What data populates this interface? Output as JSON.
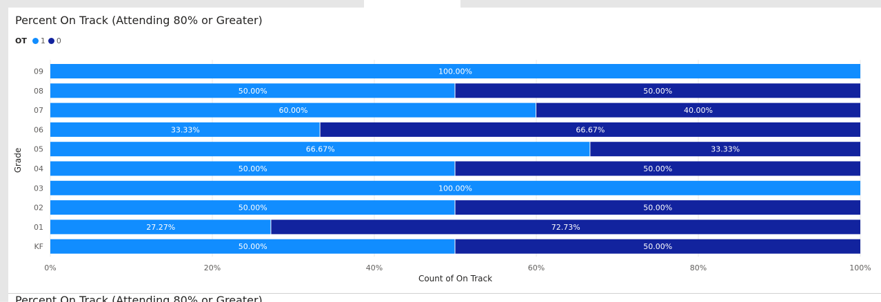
{
  "visual": {
    "title": "Percent On Track (Attending 80% or Greater)",
    "legend_title": "OT",
    "legend_items": [
      {
        "label": "1",
        "color": "#118dff"
      },
      {
        "label": "0",
        "color": "#12239e"
      }
    ]
  },
  "next_visual": {
    "title": "Percent On Track (Attending 80% or Greater)"
  },
  "chart_data": {
    "type": "bar",
    "orientation": "horizontal",
    "stacked": "100%",
    "title": "Percent On Track (Attending 80% or Greater)",
    "xlabel": "Count of On Track",
    "ylabel": "Grade",
    "categories": [
      "09",
      "08",
      "07",
      "06",
      "05",
      "04",
      "03",
      "02",
      "01",
      "KF"
    ],
    "series": [
      {
        "name": "1",
        "color": "#118dff",
        "values": [
          100.0,
          50.0,
          60.0,
          33.33,
          66.67,
          50.0,
          100.0,
          50.0,
          27.27,
          50.0
        ],
        "labels": [
          "100.00%",
          "50.00%",
          "60.00%",
          "33.33%",
          "66.67%",
          "50.00%",
          "100.00%",
          "50.00%",
          "27.27%",
          "50.00%"
        ]
      },
      {
        "name": "0",
        "color": "#12239e",
        "values": [
          0,
          50.0,
          40.0,
          66.67,
          33.33,
          50.0,
          0,
          50.0,
          72.73,
          50.0
        ],
        "labels": [
          "",
          "50.00%",
          "40.00%",
          "66.67%",
          "33.33%",
          "50.00%",
          "",
          "50.00%",
          "72.73%",
          "50.00%"
        ]
      }
    ],
    "xlim": [
      0,
      100
    ],
    "x_ticks": [
      "0%",
      "20%",
      "40%",
      "60%",
      "80%",
      "100%"
    ],
    "grid": true,
    "legend_position": "top-left"
  }
}
